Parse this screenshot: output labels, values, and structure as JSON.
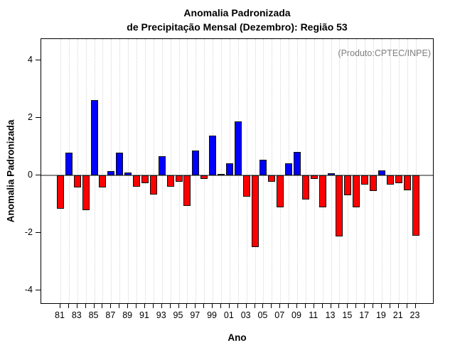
{
  "title": {
    "line1": "Anomalia Padronizada",
    "line2": "de Precipitação Mensal (Dezembro): Região 53"
  },
  "annotation": "(Produto:CPTEC/INPE)",
  "x_axis_title": "Ano",
  "y_axis_title": "Anomalia Padronizada",
  "chart_data": {
    "type": "bar",
    "title": "Anomalia Padronizada de Precipitação Mensal (Dezembro): Região 53",
    "xlabel": "Ano",
    "ylabel": "Anomalia Padronizada",
    "ylim": [
      -4.5,
      4.75
    ],
    "yticks": [
      4,
      2,
      0,
      -2,
      -4
    ],
    "grid": "vertical dotted gridline at every year",
    "legend": "none",
    "categories": [
      "81",
      "82",
      "83",
      "84",
      "85",
      "86",
      "87",
      "88",
      "89",
      "90",
      "91",
      "92",
      "93",
      "94",
      "95",
      "96",
      "97",
      "98",
      "99",
      "00",
      "01",
      "02",
      "03",
      "04",
      "05",
      "06",
      "07",
      "08",
      "09",
      "10",
      "11",
      "12",
      "13",
      "14",
      "15",
      "16",
      "17",
      "18",
      "19",
      "20",
      "21",
      "22",
      "23"
    ],
    "x_labels_shown": [
      "81",
      "83",
      "85",
      "87",
      "89",
      "91",
      "93",
      "95",
      "97",
      "99",
      "01",
      "03",
      "05",
      "07",
      "09",
      "11",
      "13",
      "15",
      "17",
      "19",
      "21",
      "23"
    ],
    "values": [
      -1.15,
      0.78,
      -0.41,
      -1.2,
      2.6,
      -0.43,
      0.16,
      0.78,
      0.11,
      -0.39,
      -0.26,
      -0.66,
      0.66,
      -0.4,
      -0.21,
      -1.07,
      0.87,
      -0.13,
      1.37,
      0.02,
      0.43,
      1.88,
      -0.74,
      -2.48,
      0.53,
      -0.21,
      -1.11,
      0.41,
      0.82,
      -0.83,
      -0.13,
      -1.11,
      0.07,
      -2.11,
      -0.7,
      -1.11,
      -0.33,
      -0.54,
      0.18,
      -0.31,
      -0.28,
      -0.52,
      -2.1
    ],
    "color_rule": "positive = blue, negative = red",
    "colors": {
      "positive_bar": "#0000ff",
      "negative_bar": "#ff0000",
      "bar_border": "#0d0d0d",
      "zero_line": "#8a8a8a",
      "gridline": "#d4d4d4",
      "axis_box": "#000000",
      "annotation_text": "#7f7f7f"
    }
  }
}
